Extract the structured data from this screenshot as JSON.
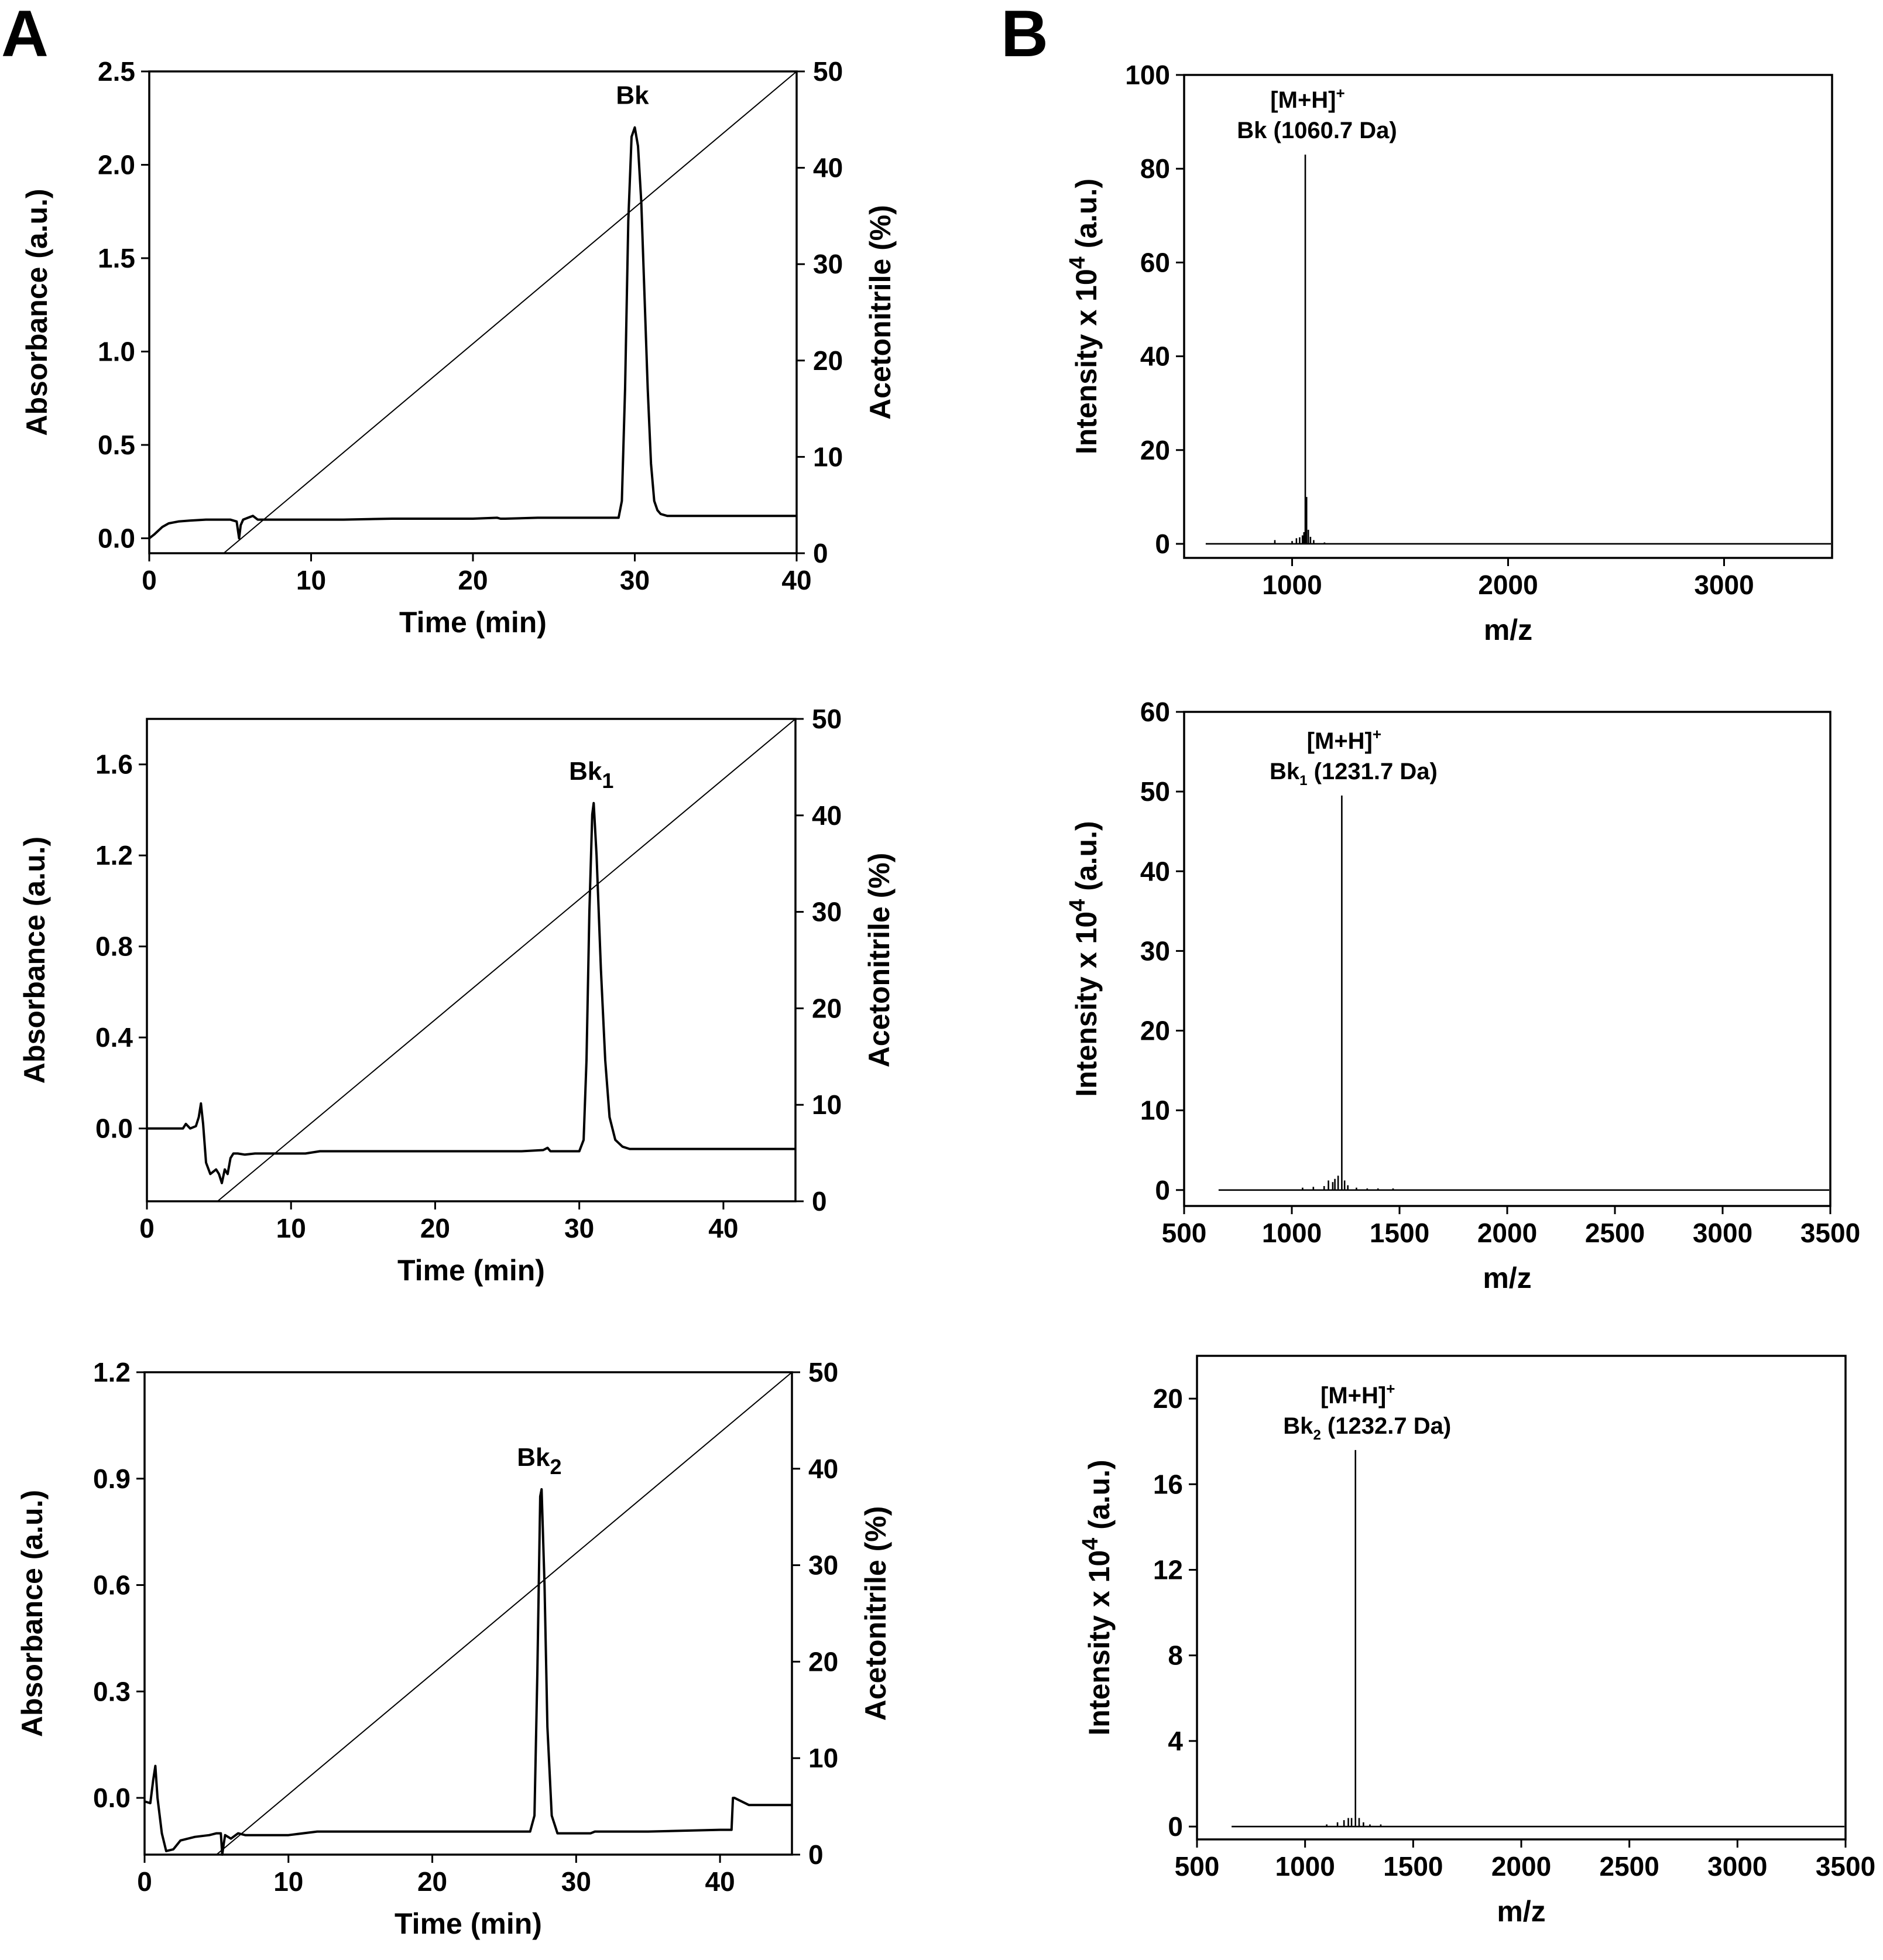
{
  "figure": {
    "panel_a_label": "A",
    "panel_b_label": "B"
  },
  "chart_data": [
    {
      "id": "hplc_bk",
      "type": "line",
      "xlabel": "Time (min)",
      "ylabel": "Absorbance (a.u.)",
      "y2label": "Acetonitrile (%)",
      "xlim": [
        0,
        40
      ],
      "ylim": [
        -0.08,
        2.5
      ],
      "y2lim": [
        0,
        50
      ],
      "xticks": [
        0,
        10,
        20,
        30,
        40
      ],
      "yticks": [
        0.0,
        0.5,
        1.0,
        1.5,
        2.0,
        2.5
      ],
      "ytick_labels": [
        "0.0",
        "0.5",
        "1.0",
        "1.5",
        "2.0",
        "2.5"
      ],
      "y2ticks": [
        0,
        10,
        20,
        30,
        40,
        50
      ],
      "peak_label": "Bk",
      "peak_sub": "",
      "peak": {
        "x": 30.0,
        "y": 2.2
      },
      "gradient": {
        "x": [
          4.6,
          40
        ],
        "y": [
          0,
          50
        ]
      },
      "series": [
        {
          "name": "absorbance",
          "x": [
            0,
            0.3,
            0.8,
            1.2,
            1.8,
            2.5,
            3.5,
            4.5,
            5.0,
            5.4,
            5.55,
            5.65,
            5.8,
            6.1,
            6.4,
            6.7,
            7.2,
            8,
            10,
            12,
            15,
            18,
            20,
            21.5,
            21.7,
            22,
            24,
            26,
            28,
            29.0,
            29.2,
            29.4,
            29.6,
            29.8,
            30.0,
            30.2,
            30.4,
            30.6,
            30.8,
            31.0,
            31.2,
            31.4,
            31.6,
            32.0,
            32.5,
            34,
            36,
            38,
            40
          ],
          "y": [
            0.0,
            0.02,
            0.06,
            0.08,
            0.09,
            0.095,
            0.1,
            0.1,
            0.1,
            0.09,
            0.0,
            0.07,
            0.1,
            0.11,
            0.12,
            0.1,
            0.1,
            0.1,
            0.1,
            0.1,
            0.105,
            0.105,
            0.105,
            0.11,
            0.105,
            0.105,
            0.11,
            0.11,
            0.11,
            0.11,
            0.2,
            0.8,
            1.7,
            2.15,
            2.2,
            2.1,
            1.8,
            1.3,
            0.8,
            0.4,
            0.2,
            0.15,
            0.13,
            0.12,
            0.12,
            0.12,
            0.12,
            0.12,
            0.12
          ]
        }
      ]
    },
    {
      "id": "hplc_bk1",
      "type": "line",
      "xlabel": "Time (min)",
      "ylabel": "Absorbance (a.u.)",
      "y2label": "Acetonitrile (%)",
      "xlim": [
        0,
        45
      ],
      "ylim": [
        -0.32,
        1.8
      ],
      "y2lim": [
        0,
        50
      ],
      "xticks": [
        0,
        10,
        20,
        30,
        40
      ],
      "yticks": [
        0.0,
        0.4,
        0.8,
        1.2,
        1.6
      ],
      "ytick_labels": [
        "0.0",
        "0.4",
        "0.8",
        "1.2",
        "1.6"
      ],
      "y2ticks": [
        0,
        10,
        20,
        30,
        40,
        50
      ],
      "peak_label": "Bk",
      "peak_sub": "1",
      "peak": {
        "x": 31.0,
        "y": 1.43
      },
      "gradient": {
        "x": [
          4.9,
          45
        ],
        "y": [
          0,
          50
        ]
      },
      "series": [
        {
          "name": "absorbance",
          "x": [
            0,
            1,
            2,
            2.5,
            2.7,
            3.0,
            3.4,
            3.6,
            3.75,
            3.9,
            4.1,
            4.4,
            4.8,
            5.0,
            5.2,
            5.4,
            5.6,
            5.8,
            6.0,
            6.3,
            6.8,
            7.5,
            9,
            11,
            12,
            14,
            18,
            22,
            26,
            27.5,
            27.8,
            28,
            30.0,
            30.3,
            30.5,
            30.7,
            30.9,
            31.0,
            31.2,
            31.5,
            31.8,
            32.1,
            32.5,
            33,
            33.5,
            35,
            40,
            45
          ],
          "y": [
            0.0,
            0.0,
            0.0,
            0.0,
            0.02,
            0.0,
            0.01,
            0.05,
            0.11,
            0.02,
            -0.15,
            -0.2,
            -0.18,
            -0.2,
            -0.24,
            -0.18,
            -0.2,
            -0.13,
            -0.11,
            -0.11,
            -0.115,
            -0.11,
            -0.11,
            -0.11,
            -0.1,
            -0.1,
            -0.1,
            -0.1,
            -0.1,
            -0.095,
            -0.085,
            -0.1,
            -0.1,
            -0.05,
            0.3,
            0.95,
            1.38,
            1.43,
            1.2,
            0.7,
            0.3,
            0.05,
            -0.05,
            -0.08,
            -0.09,
            -0.09,
            -0.09,
            -0.09
          ]
        }
      ]
    },
    {
      "id": "hplc_bk2",
      "type": "line",
      "xlabel": "Time (min)",
      "ylabel": "Absorbance (a.u.)",
      "y2label": "Acetonitrile (%)",
      "xlim": [
        0,
        45
      ],
      "ylim": [
        -0.16,
        1.2
      ],
      "y2lim": [
        0,
        50
      ],
      "xticks": [
        0,
        10,
        20,
        30,
        40
      ],
      "yticks": [
        0.0,
        0.3,
        0.6,
        0.9,
        1.2
      ],
      "ytick_labels": [
        "0.0",
        "0.3",
        "0.6",
        "0.9",
        "1.2"
      ],
      "y2ticks": [
        0,
        10,
        20,
        30,
        40,
        50
      ],
      "peak_label": "Bk",
      "peak_sub": "2",
      "peak": {
        "x": 27.6,
        "y": 0.87
      },
      "gradient": {
        "x": [
          5.0,
          45
        ],
        "y": [
          0,
          50
        ]
      },
      "series": [
        {
          "name": "absorbance",
          "x": [
            0,
            0.4,
            0.6,
            0.75,
            0.9,
            1.2,
            1.5,
            2.0,
            2.5,
            3.5,
            4.5,
            5.0,
            5.3,
            5.4,
            5.5,
            5.6,
            6.0,
            6.5,
            7.0,
            8,
            10,
            12,
            15,
            20,
            25,
            26.8,
            27.1,
            27.3,
            27.5,
            27.6,
            27.8,
            28.0,
            28.3,
            28.7,
            29.5,
            31,
            31.3,
            35,
            40,
            40.8,
            40.9,
            41.0,
            42,
            45
          ],
          "y": [
            -0.01,
            -0.015,
            0.05,
            0.09,
            0.0,
            -0.1,
            -0.15,
            -0.145,
            -0.12,
            -0.11,
            -0.105,
            -0.1,
            -0.1,
            -0.16,
            -0.13,
            -0.105,
            -0.115,
            -0.1,
            -0.105,
            -0.105,
            -0.105,
            -0.095,
            -0.095,
            -0.095,
            -0.095,
            -0.095,
            -0.05,
            0.35,
            0.85,
            0.87,
            0.6,
            0.2,
            -0.05,
            -0.1,
            -0.1,
            -0.1,
            -0.095,
            -0.095,
            -0.09,
            -0.09,
            0.0,
            0.0,
            -0.02,
            -0.02
          ]
        }
      ]
    },
    {
      "id": "ms_bk",
      "type": "bar",
      "xlabel": "m/z",
      "ylabel_pre": "Intensity x 10",
      "ylabel_sup": "4",
      "ylabel_post": " (a.u.)",
      "xlim": [
        500,
        3500
      ],
      "ylim": [
        -3,
        100
      ],
      "xticks": [
        1000,
        2000,
        3000
      ],
      "yticks": [
        0,
        20,
        40,
        60,
        80,
        100
      ],
      "ion_label": "[M+H]",
      "ion_sup": "+",
      "peak_label": "Bk   (1060.7 Da)",
      "peak_sub": "",
      "peak_mass": "",
      "baseline_x": [
        600,
        3500
      ],
      "series": [
        {
          "name": "peaks",
          "x": [
            920,
            1000,
            1020,
            1035,
            1048,
            1055,
            1061,
            1067,
            1075,
            1085,
            1100,
            1150
          ],
          "y": [
            0.8,
            0.6,
            1.2,
            1.4,
            1.8,
            2.5,
            83,
            10,
            3,
            1.5,
            0.8,
            0.3
          ]
        }
      ]
    },
    {
      "id": "ms_bk1",
      "type": "bar",
      "xlabel": "m/z",
      "ylabel_pre": "Intensity x 10",
      "ylabel_sup": "4",
      "ylabel_post": " (a.u.)",
      "xlim": [
        500,
        3500
      ],
      "ylim": [
        -2,
        60
      ],
      "xticks": [
        500,
        1000,
        1500,
        2000,
        2500,
        3000,
        3500
      ],
      "yticks": [
        0,
        10,
        20,
        30,
        40,
        50,
        60
      ],
      "ion_label": "[M+H]",
      "ion_sup": "+",
      "peak_label": "Bk",
      "peak_sub": "1",
      "peak_mass": " (1231.7 Da)",
      "baseline_x": [
        660,
        3500
      ],
      "series": [
        {
          "name": "peaks",
          "x": [
            1050,
            1100,
            1150,
            1170,
            1190,
            1200,
            1215,
            1232,
            1245,
            1260,
            1300,
            1350,
            1400,
            1470
          ],
          "y": [
            0.3,
            0.4,
            0.5,
            1.2,
            1.0,
            1.4,
            1.8,
            49.5,
            1.2,
            0.6,
            0.3,
            0.2,
            0.2,
            0.2
          ]
        }
      ]
    },
    {
      "id": "ms_bk2",
      "type": "bar",
      "xlabel": "m/z",
      "ylabel_pre": "Intensity x 10",
      "ylabel_sup": "4",
      "ylabel_post": " (a.u.)",
      "xlim": [
        500,
        3500
      ],
      "ylim": [
        -0.6,
        22
      ],
      "xticks": [
        500,
        1000,
        1500,
        2000,
        2500,
        3000,
        3500
      ],
      "yticks": [
        0,
        4,
        8,
        12,
        16,
        20
      ],
      "ion_label": "[M+H]",
      "ion_sup": "+",
      "peak_label": "Bk",
      "peak_sub": "2",
      "peak_mass": " (1232.7 Da)",
      "baseline_x": [
        660,
        3500
      ],
      "series": [
        {
          "name": "peaks",
          "x": [
            1100,
            1150,
            1180,
            1200,
            1215,
            1233,
            1250,
            1270,
            1300,
            1350
          ],
          "y": [
            0.1,
            0.2,
            0.3,
            0.4,
            0.4,
            17.6,
            0.4,
            0.2,
            0.1,
            0.1
          ]
        }
      ]
    }
  ]
}
